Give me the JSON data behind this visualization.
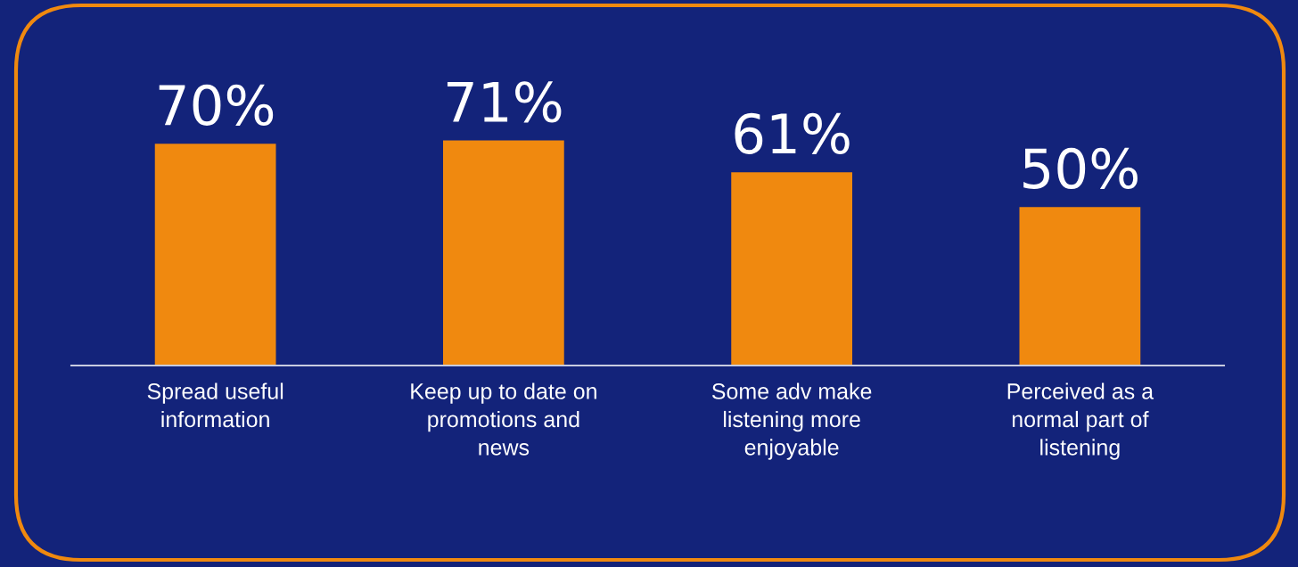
{
  "chart_data": {
    "type": "bar",
    "categories": [
      "Spread useful\ninformation",
      "Keep up to date on\npromotions and\nnews",
      "Some adv make\nlistening more\nenjoyable",
      "Perceived as a\nnormal part of\nlistening"
    ],
    "values": [
      70,
      71,
      61,
      50
    ],
    "value_labels": [
      "70%",
      "71%",
      "61%",
      "50%"
    ],
    "color": "#f0890f",
    "tick_labels": "x",
    "grid": false,
    "legend": false
  }
}
